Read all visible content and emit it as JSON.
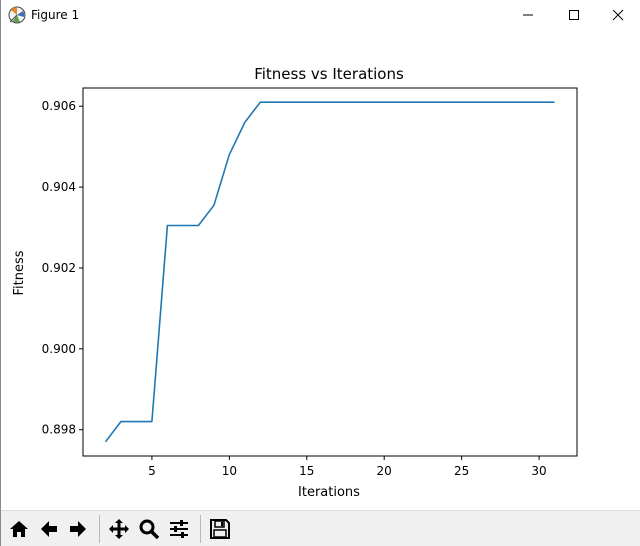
{
  "window": {
    "title": "Figure 1"
  },
  "toolbar": {
    "buttons": [
      "home-icon",
      "back-icon",
      "forward-icon",
      "pan-icon",
      "zoom-icon",
      "configure-subplots-icon",
      "save-icon"
    ]
  },
  "chart_data": {
    "type": "line",
    "title": "Fitness vs Iterations",
    "xlabel": "Iterations",
    "ylabel": "Fitness",
    "x": [
      2,
      3,
      4,
      5,
      6,
      7,
      8,
      9,
      10,
      11,
      12,
      31
    ],
    "series": [
      {
        "values": [
          0.8977,
          0.8982,
          0.8982,
          0.8982,
          0.90305,
          0.90305,
          0.90305,
          0.90355,
          0.9048,
          0.9056,
          0.9061,
          0.9061
        ],
        "color": "#1f77b4"
      }
    ],
    "xlim": [
      0.55,
      32.45
    ],
    "ylim": [
      0.89735,
      0.90645
    ],
    "xticks": [
      5,
      10,
      15,
      20,
      25,
      30
    ],
    "xtick_labels": [
      "5",
      "10",
      "15",
      "20",
      "25",
      "30"
    ],
    "yticks": [
      0.898,
      0.9,
      0.902,
      0.904,
      0.906
    ],
    "ytick_labels": [
      "0.898",
      "0.900",
      "0.902",
      "0.904",
      "0.906"
    ],
    "grid": false,
    "legend": "none"
  }
}
